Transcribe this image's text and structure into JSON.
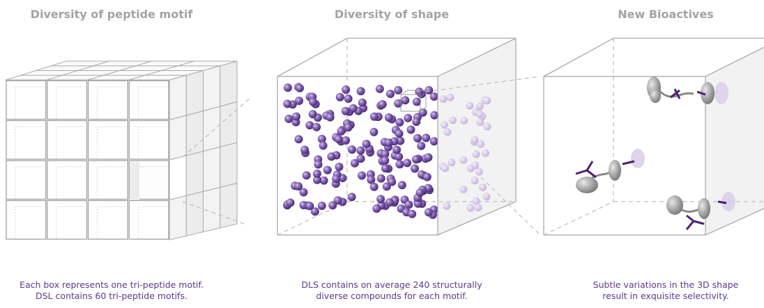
{
  "panels": [
    {
      "heading": "Diversity of peptide motif",
      "caption": [
        "Each box represents one tri-peptide motif.",
        "DSL contains 60 tri-peptide motifs."
      ]
    },
    {
      "heading": "Diversity of shape",
      "caption": [
        "DLS contains on average 240 structurally",
        "diverse compounds for each motif."
      ]
    },
    {
      "heading": "New Bioactives",
      "caption": [
        "Subtle variations in the 3D shape",
        "result in exquisite selectivity."
      ]
    }
  ]
}
